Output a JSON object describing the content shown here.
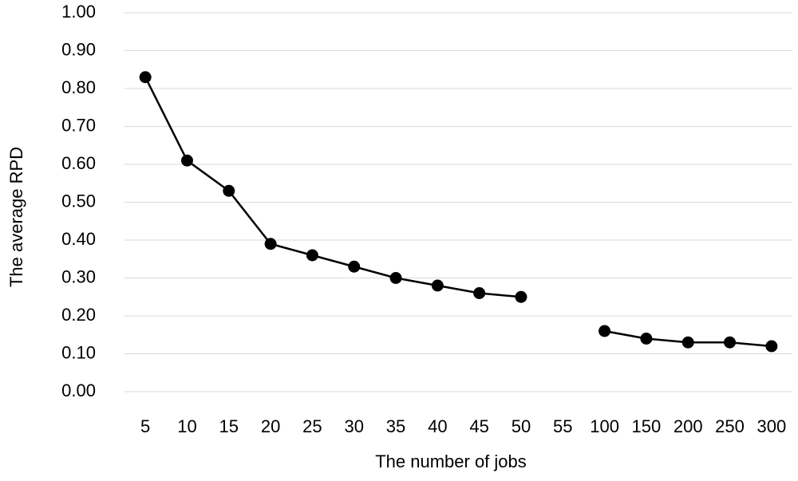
{
  "chart_data": {
    "type": "line",
    "x_label": "The number of jobs",
    "y_label": "The average RPD",
    "categories": [
      "5",
      "10",
      "15",
      "20",
      "25",
      "30",
      "35",
      "40",
      "45",
      "50",
      "55",
      "100",
      "150",
      "200",
      "250",
      "300"
    ],
    "series": [
      {
        "name": "Average RPD",
        "color": "#000000",
        "values": [
          0.83,
          0.61,
          0.53,
          0.39,
          0.36,
          0.33,
          0.3,
          0.28,
          0.26,
          0.25,
          null,
          0.16,
          0.14,
          0.13,
          0.13,
          0.12
        ]
      }
    ],
    "ylim": [
      0,
      1
    ],
    "yticks": [
      {
        "value": 0,
        "label": "0.00"
      },
      {
        "value": 0.1,
        "label": "0.10"
      },
      {
        "value": 0.2,
        "label": "0.20"
      },
      {
        "value": 0.3,
        "label": "0.30"
      },
      {
        "value": 0.4,
        "label": "0.40"
      },
      {
        "value": 0.5,
        "label": "0.50"
      },
      {
        "value": 0.6,
        "label": "0.60"
      },
      {
        "value": 0.7,
        "label": "0.70"
      },
      {
        "value": 0.8,
        "label": "0.80"
      },
      {
        "value": 0.9,
        "label": "0.90"
      },
      {
        "value": 1,
        "label": "1.00"
      }
    ],
    "grid": true
  }
}
